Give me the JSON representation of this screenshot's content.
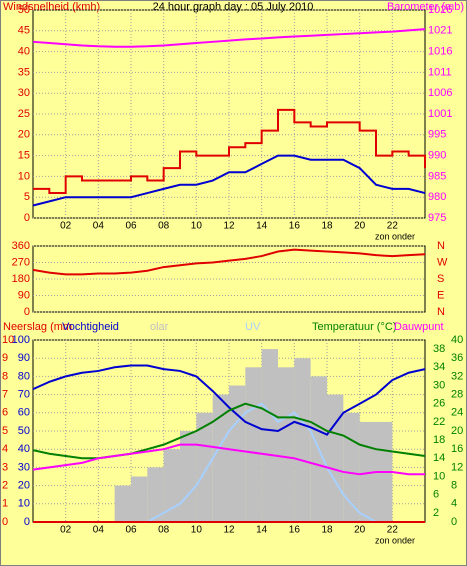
{
  "chart_data": [
    {
      "type": "line",
      "title": "24 hour graph day : 05 July 2010",
      "ylabel": "Windsnelheid (kmh)",
      "y2label": "Barometer (mb)",
      "annotation": "zon onder",
      "x": [
        0,
        1,
        2,
        3,
        4,
        5,
        6,
        7,
        8,
        9,
        10,
        11,
        12,
        13,
        14,
        15,
        16,
        17,
        18,
        19,
        20,
        21,
        22,
        23,
        24
      ],
      "xlim": [
        0,
        24
      ],
      "xticks": [
        {
          "value": 2,
          "label": "02"
        },
        {
          "value": 4,
          "label": "04"
        },
        {
          "value": 6,
          "label": "06"
        },
        {
          "value": 8,
          "label": "08"
        },
        10,
        12,
        14,
        16,
        18,
        20,
        22
      ],
      "ylim": [
        0,
        50
      ],
      "yticks": [
        0,
        5,
        10,
        15,
        20,
        25,
        30,
        35,
        40,
        45,
        50
      ],
      "y2lim": [
        975,
        1026
      ],
      "y2ticks": [
        975,
        {
          "value": 980.1,
          "label": "980"
        },
        {
          "value": 985.2,
          "label": "985"
        },
        {
          "value": 990.3,
          "label": "990"
        },
        {
          "value": 995.4,
          "label": "995"
        },
        {
          "value": 1000.5,
          "label": "1001"
        },
        {
          "value": 1005.6,
          "label": "1006"
        },
        {
          "value": 1010.7,
          "label": "1011"
        },
        {
          "value": 1015.8,
          "label": "1016"
        },
        {
          "value": 1020.9,
          "label": "1021"
        },
        1026
      ],
      "grid": true,
      "series": [
        {
          "color": "#e00000",
          "step": true,
          "values": [
            7,
            6,
            10,
            9,
            9,
            9,
            10,
            9,
            12,
            16,
            15,
            15,
            17,
            18,
            21,
            26,
            23,
            22,
            23,
            23,
            21,
            15,
            16,
            15,
            12
          ]
        },
        {
          "color": "#0000d0",
          "values": [
            3,
            4,
            5,
            5,
            5,
            5,
            5,
            6,
            7,
            8,
            8,
            9,
            11,
            11,
            13,
            15,
            15,
            14,
            14,
            14,
            12,
            8,
            7,
            7,
            6
          ]
        },
        {
          "color": "#ff00ff",
          "axis": "y2",
          "values": [
            1018.2,
            1017.9,
            1017.6,
            1017.3,
            1017.1,
            1017,
            1017,
            1017.1,
            1017.3,
            1017.6,
            1017.9,
            1018.2,
            1018.5,
            1018.8,
            1019,
            1019.3,
            1019.5,
            1019.7,
            1019.9,
            1020.1,
            1020.3,
            1020.5,
            1020.7,
            1021,
            1021.3
          ]
        }
      ]
    },
    {
      "type": "line",
      "x": [
        0,
        1,
        2,
        3,
        4,
        5,
        6,
        7,
        8,
        9,
        10,
        11,
        12,
        13,
        14,
        15,
        16,
        17,
        18,
        19,
        20,
        21,
        22,
        23,
        24
      ],
      "xlim": [
        0,
        24
      ],
      "ylim": [
        0,
        360
      ],
      "yticks": [
        0,
        90,
        180,
        270,
        360
      ],
      "y2lim": [
        0,
        360
      ],
      "y2ticks": [
        {
          "value": 0,
          "label": "N"
        },
        {
          "value": 90,
          "label": "E"
        },
        {
          "value": 180,
          "label": "S"
        },
        {
          "value": 270,
          "label": "W"
        },
        {
          "value": 360,
          "label": "N"
        }
      ],
      "grid": true,
      "series": [
        {
          "color": "#e00000",
          "values": [
            230,
            215,
            205,
            205,
            210,
            210,
            215,
            225,
            245,
            255,
            265,
            270,
            280,
            290,
            305,
            330,
            340,
            335,
            330,
            325,
            320,
            310,
            305,
            310,
            315
          ]
        }
      ]
    },
    {
      "type": "line",
      "annotation": "zon onder",
      "x": [
        0,
        1,
        2,
        3,
        4,
        5,
        6,
        7,
        8,
        9,
        10,
        11,
        12,
        13,
        14,
        15,
        16,
        17,
        18,
        19,
        20,
        21,
        22,
        23,
        24
      ],
      "xlim": [
        0,
        24
      ],
      "xticks": [
        {
          "value": 2,
          "label": "02"
        },
        {
          "value": 4,
          "label": "04"
        },
        {
          "value": 6,
          "label": "06"
        },
        {
          "value": 8,
          "label": "08"
        },
        10,
        12,
        14,
        16,
        18,
        20,
        22
      ],
      "ylim": [
        0,
        100
      ],
      "yticks": [
        0,
        10,
        20,
        30,
        40,
        50,
        60,
        70,
        80,
        90,
        100
      ],
      "y2lim": [
        0,
        40
      ],
      "y2ticks": [
        0,
        2,
        4,
        6,
        8,
        10,
        12,
        14,
        16,
        18,
        20,
        22,
        24,
        26,
        28,
        30,
        32,
        34,
        36,
        38,
        40
      ],
      "y3lim": [
        0,
        10
      ],
      "y3ticks": [
        0,
        1,
        2,
        3,
        4,
        5,
        6,
        7,
        8,
        9,
        10
      ],
      "grid": true,
      "series": [
        {
          "name": "olar",
          "color": "#c0c0c0",
          "type": "bar",
          "values": [
            0,
            0,
            0,
            0,
            0,
            20,
            25,
            30,
            40,
            50,
            60,
            70,
            75,
            85,
            95,
            85,
            90,
            80,
            70,
            60,
            55,
            55,
            0,
            0,
            0
          ]
        },
        {
          "name": "UV",
          "color": "#a8d0ff",
          "values": [
            0,
            0,
            0,
            0,
            0,
            0,
            0,
            0,
            5,
            10,
            20,
            35,
            50,
            60,
            65,
            55,
            60,
            50,
            30,
            15,
            5,
            0,
            0,
            0,
            0
          ]
        },
        {
          "name": "Neerslag (mm",
          "color": "#e00000",
          "axis": "y3",
          "values": [
            0,
            0,
            0,
            0,
            0,
            0,
            0,
            0,
            0,
            0,
            0,
            0,
            0,
            0,
            0,
            0,
            0,
            0,
            0,
            0,
            0,
            0,
            0,
            0,
            0
          ]
        },
        {
          "name": "Vochtigheid",
          "color": "#0000d0",
          "values": [
            73,
            77,
            80,
            82,
            83,
            85,
            86,
            86,
            84,
            83,
            80,
            72,
            63,
            55,
            51,
            50,
            55,
            52,
            48,
            60,
            65,
            70,
            78,
            82,
            84
          ]
        },
        {
          "name": "Temperatuur (°C)",
          "color": "#008000",
          "axis": "y2",
          "values": [
            15.8,
            15,
            14.5,
            14,
            14,
            14.5,
            15,
            16,
            17,
            18.5,
            20,
            22,
            24.5,
            26,
            25,
            23,
            23,
            22,
            20,
            19,
            17,
            16,
            15.5,
            15,
            14.5
          ]
        },
        {
          "name": "Dauwpunt",
          "color": "#ff00ff",
          "axis": "y2",
          "values": [
            11.5,
            12,
            12.5,
            13,
            14,
            14.5,
            15,
            15.5,
            16,
            17,
            17,
            16.5,
            16,
            15.5,
            15,
            14.5,
            14,
            13,
            12,
            11,
            10.5,
            11,
            11,
            10.5,
            10.5
          ]
        }
      ]
    }
  ]
}
